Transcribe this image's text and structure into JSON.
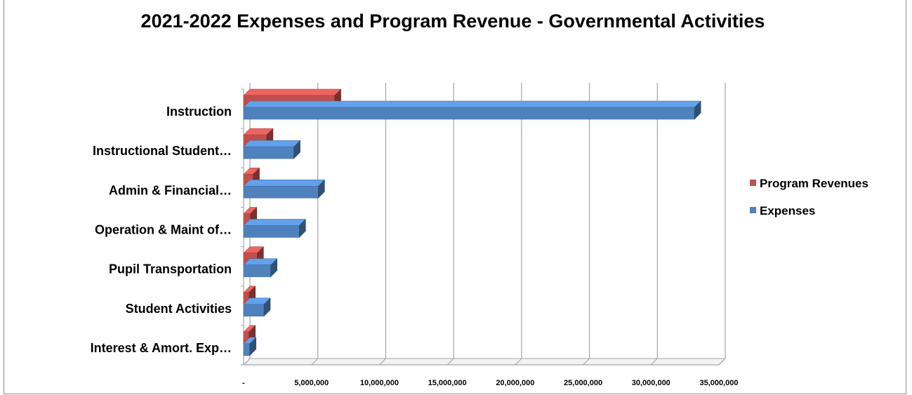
{
  "chart_data": {
    "type": "bar",
    "orientation": "horizontal",
    "title": "2021-2022 Expenses and Program Revenue - Governmental Activities",
    "categories": [
      "Instruction",
      "Instructional Student…",
      "Admin & Financial…",
      "Operation & Maint of…",
      "Pupil Transportation",
      "Student Activities",
      "Interest & Amort. Exp…"
    ],
    "series": [
      {
        "name": "Program Revenues",
        "color": "#c0504d",
        "values": [
          6700000,
          1700000,
          700000,
          500000,
          1000000,
          400000,
          400000
        ]
      },
      {
        "name": "Expenses",
        "color": "#4f81bd",
        "values": [
          33200000,
          3700000,
          5500000,
          4100000,
          2000000,
          1500000,
          450000
        ]
      }
    ],
    "xlim": [
      0,
      35000000
    ],
    "xticks": [
      {
        "value": 0,
        "label": "-"
      },
      {
        "value": 5000000,
        "label": "5,000,000"
      },
      {
        "value": 10000000,
        "label": "10,000,000"
      },
      {
        "value": 15000000,
        "label": "15,000,000"
      },
      {
        "value": 20000000,
        "label": "20,000,000"
      },
      {
        "value": 25000000,
        "label": "25,000,000"
      },
      {
        "value": 30000000,
        "label": "30,000,000"
      },
      {
        "value": 35000000,
        "label": "35,000,000"
      }
    ],
    "grid": true,
    "legend": "right",
    "style": "3d"
  }
}
